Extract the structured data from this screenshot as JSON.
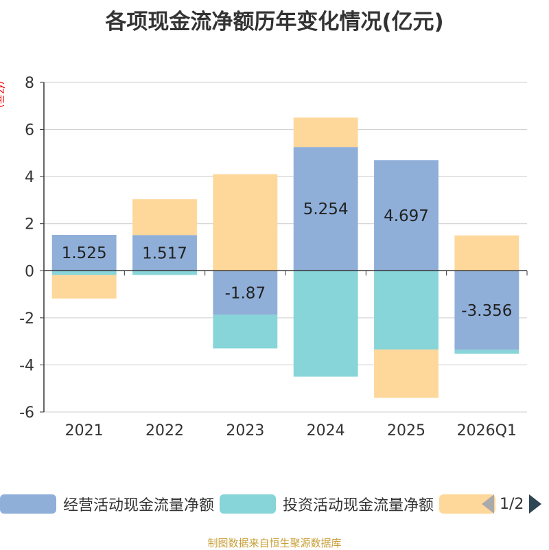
{
  "colors": {
    "operating": "#8fafd9",
    "investing": "#87d5d8",
    "financing": "#fed79a",
    "axis": "#333333",
    "grid": "#cccccc",
    "unit": "#ff0000",
    "source": "#c8a03a"
  },
  "legend": {
    "items": [
      {
        "label": "经营活动现金流量净额",
        "color": "#8fafd9"
      },
      {
        "label": "投资活动现金流量净额",
        "color": "#87d5d8"
      },
      {
        "label": "",
        "color": "#fed79a"
      }
    ],
    "page": "1/2",
    "prev_icon": "triangle-left-icon",
    "next_icon": "triangle-right-icon"
  },
  "source_note": "制图数据来自恒生聚源数据库",
  "chart_data": {
    "type": "bar",
    "stacked": true,
    "title": "各项现金流净额历年变化情况(亿元)",
    "ylabel": "(亿元)",
    "xlabel": "",
    "categories": [
      "2021",
      "2022",
      "2023",
      "2024",
      "2025",
      "2026Q1"
    ],
    "ylim": [
      -6,
      8
    ],
    "yticks": [
      -6,
      -4,
      -2,
      0,
      2,
      4,
      6,
      8
    ],
    "grid": true,
    "legend_position": "bottom",
    "series": [
      {
        "name": "经营活动现金流量净额",
        "color": "#8fafd9",
        "values": [
          1.525,
          1.517,
          -1.87,
          5.254,
          4.697,
          -3.356
        ],
        "labels": [
          "1.525",
          "1.517",
          "-1.87",
          "5.254",
          "4.697",
          "-3.356"
        ]
      },
      {
        "name": "投资活动现金流量净额",
        "color": "#87d5d8",
        "values": [
          -0.18,
          -0.18,
          -1.43,
          -4.5,
          -3.35,
          -0.17
        ]
      },
      {
        "color": "#fed79a",
        "values": [
          -1.0,
          1.52,
          4.1,
          1.25,
          -2.05,
          1.5
        ]
      }
    ]
  }
}
